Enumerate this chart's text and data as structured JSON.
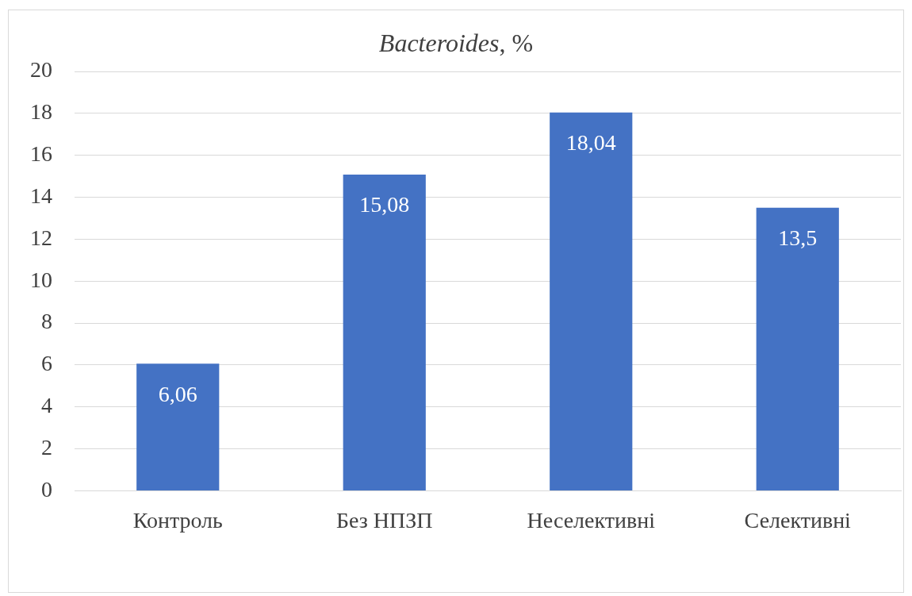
{
  "chart_data": {
    "type": "bar",
    "title": "Bacteroides, %",
    "categories": [
      "Контроль",
      "Без НПЗП",
      "Неселективні",
      "Селективні"
    ],
    "values": [
      6.06,
      15.08,
      18.04,
      13.5
    ],
    "value_labels": [
      "6,06",
      "15,08",
      "18,04",
      "13,5"
    ],
    "color": "#4472c4",
    "ylim": [
      0,
      20
    ],
    "yticks": [
      0,
      2,
      4,
      6,
      8,
      10,
      12,
      14,
      16,
      18,
      20
    ],
    "grid": "y",
    "legend": false
  }
}
